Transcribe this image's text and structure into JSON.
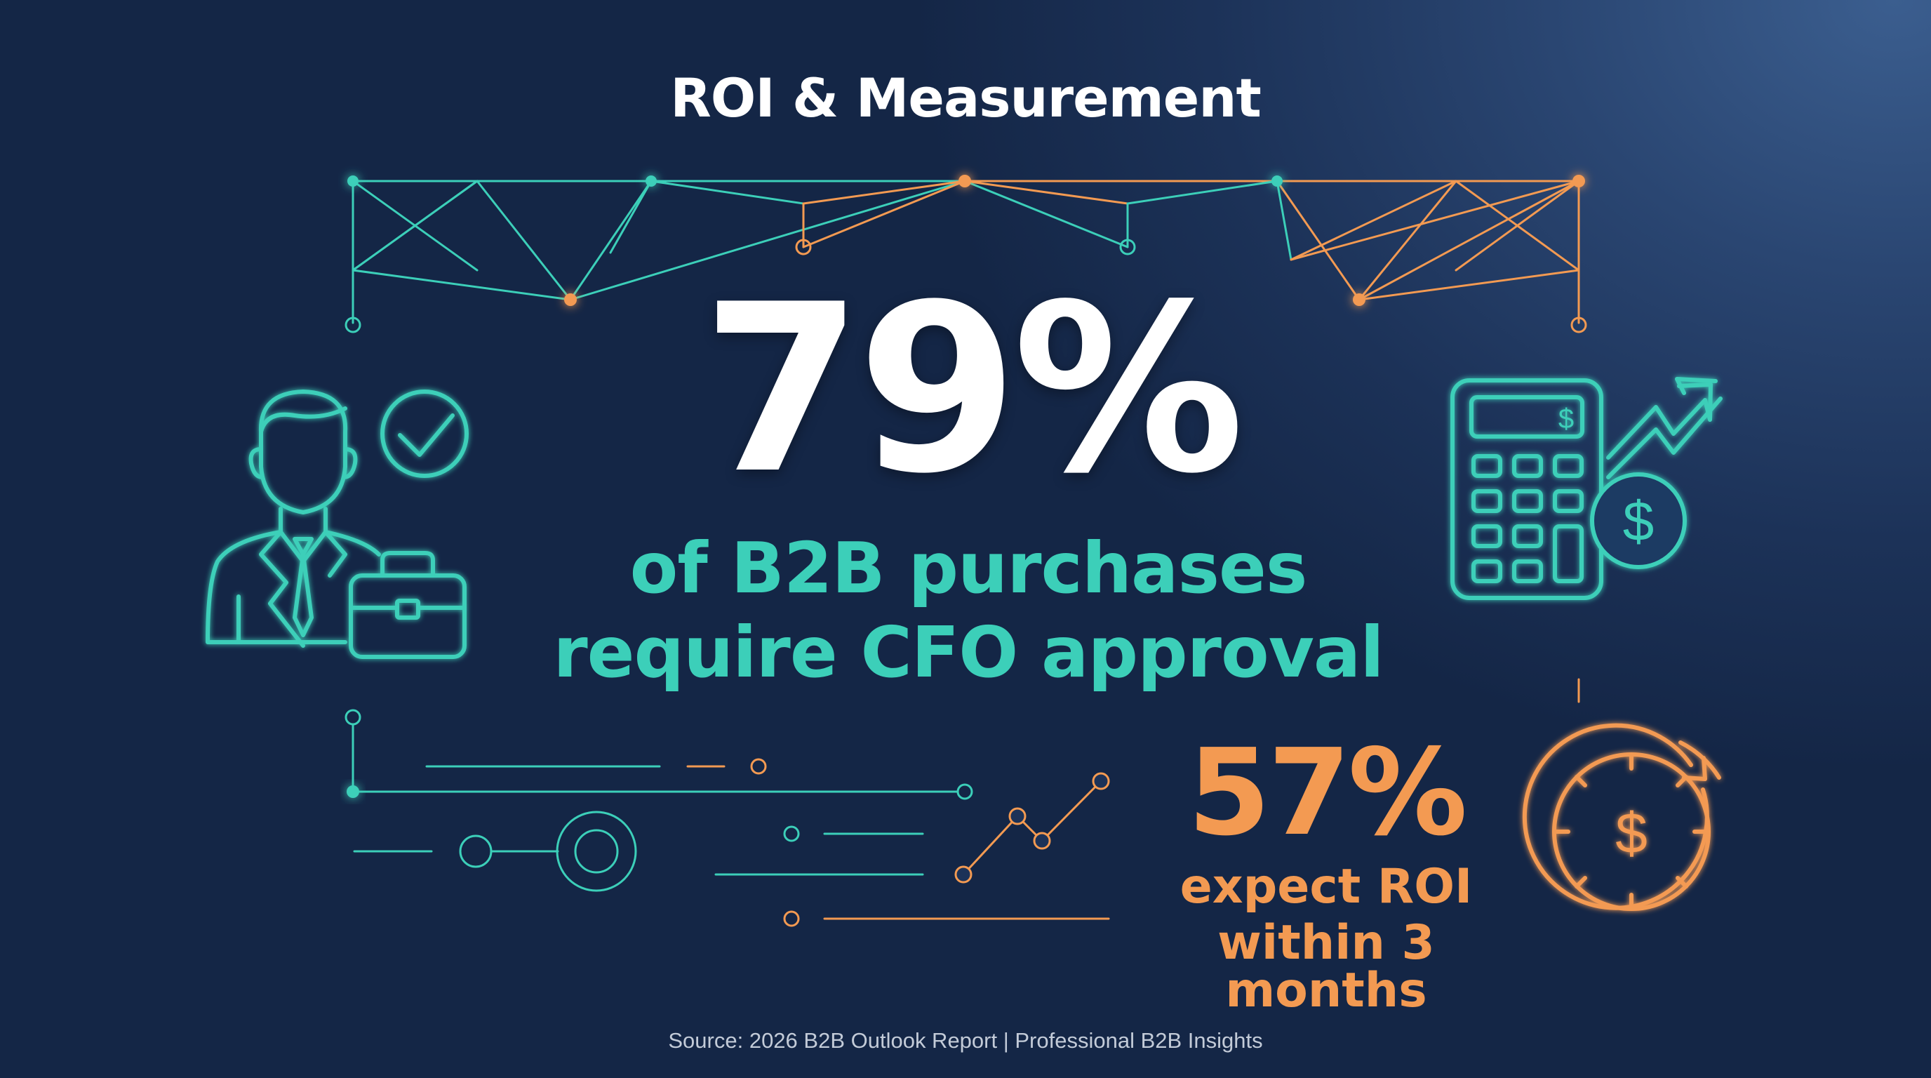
{
  "title": "ROI & Measurement",
  "main_stat": {
    "value": "79%",
    "caption_line1": "of B2B purchases",
    "caption_line2": "require CFO approval"
  },
  "secondary_stat": {
    "value": "57%",
    "caption_line1": "expect ROI",
    "caption_line2": "within 3 months"
  },
  "calculator_symbol": "$",
  "coin_symbol": "$",
  "stopwatch_symbol": "$",
  "source": "Source: 2026 B2B Outlook Report | Professional B2B Insights",
  "icons": [
    "businessman-icon",
    "checkmark-circle-icon",
    "briefcase-icon",
    "calculator-icon",
    "trend-arrow-icon",
    "dollar-coin-icon",
    "stopwatch-dollar-icon"
  ],
  "colors": {
    "teal": "#3ccfb9",
    "orange": "#f39a52",
    "white": "#ffffff",
    "background": "#1c3258"
  }
}
